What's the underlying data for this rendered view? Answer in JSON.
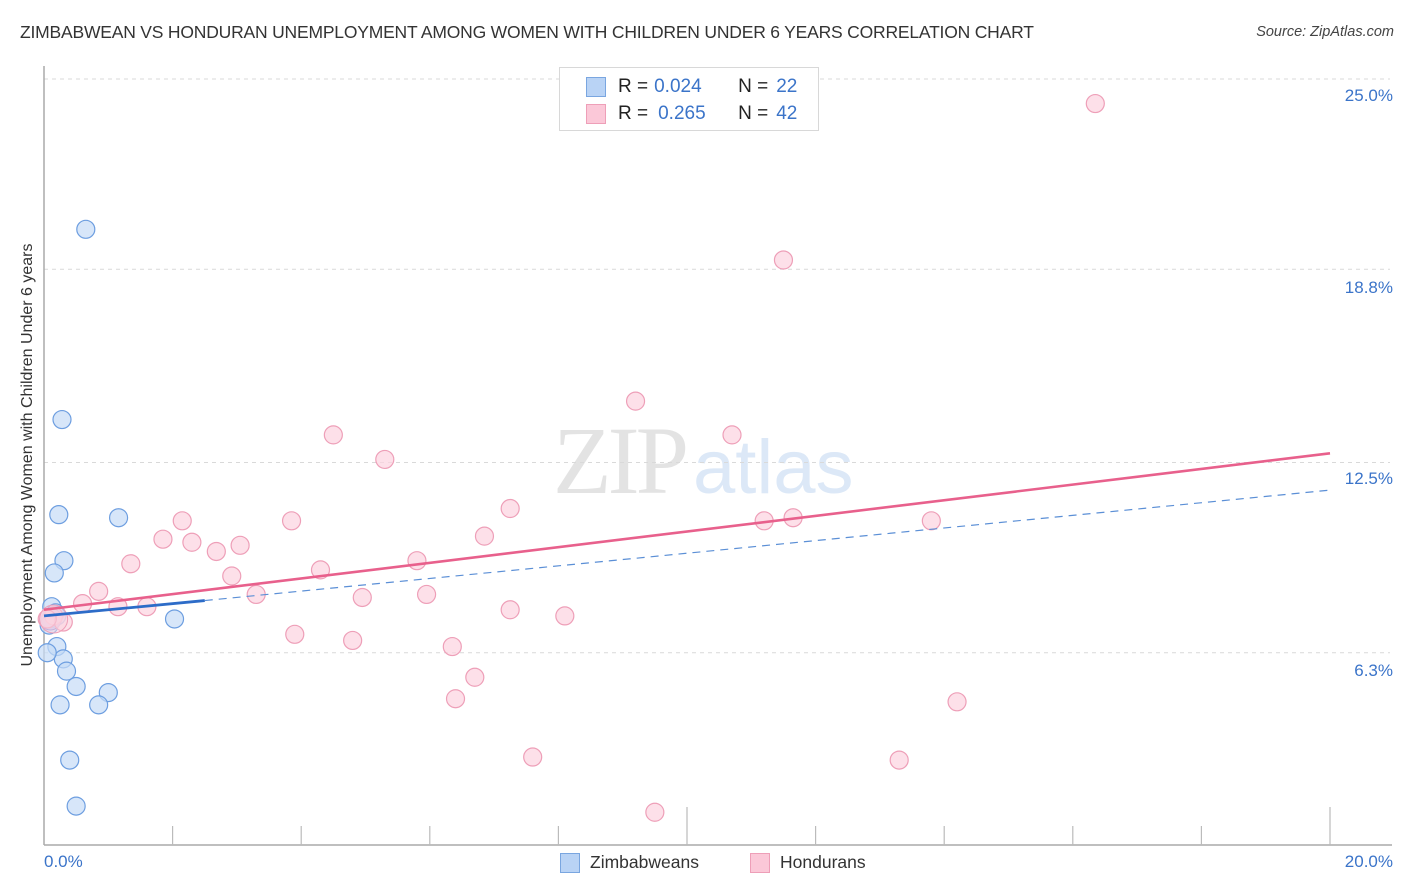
{
  "header": {
    "title": "ZIMBABWEAN VS HONDURAN UNEMPLOYMENT AMONG WOMEN WITH CHILDREN UNDER 6 YEARS CORRELATION CHART",
    "source": "Source: ZipAtlas.com"
  },
  "watermark": {
    "zip": "ZIP",
    "atlas": "atlas"
  },
  "legend": {
    "rows": [
      {
        "r_label": "R = ",
        "r_value": "0.024",
        "n_label": "N = ",
        "n_value": "22",
        "color": "#b9d3f5",
        "border": "#7aa6e0"
      },
      {
        "r_label": "R = ",
        "r_value": "0.265",
        "n_label": "N = ",
        "n_value": "42",
        "color": "#fbc8d8",
        "border": "#ee9fb8"
      }
    ]
  },
  "bottom_legend": {
    "items": [
      {
        "label": "Zimbabweans",
        "color": "#b9d3f5",
        "border": "#7aa6e0"
      },
      {
        "label": "Hondurans",
        "color": "#fbc8d8",
        "border": "#ee9fb8"
      }
    ]
  },
  "axes": {
    "y_ticks": [
      "25.0%",
      "18.8%",
      "12.5%",
      "6.3%"
    ],
    "x_ticks": [
      "0.0%",
      "20.0%"
    ],
    "ylabel": "Unemployment Among Women with Children Under 6 years"
  },
  "colors": {
    "zimbabweans_fill": "#c6dbf7",
    "zimbabweans_stroke": "#6d9ee0",
    "zimbabweans_line": "#2d6cc8",
    "hondurans_fill": "#fcd3df",
    "hondurans_stroke": "#ee9fb8",
    "hondurans_line": "#e8608c",
    "axis_text": "#3b74c9",
    "grid": "#d9d9d9"
  },
  "chart_data": {
    "type": "scatter",
    "title": "ZIMBABWEAN VS HONDURAN UNEMPLOYMENT AMONG WOMEN WITH CHILDREN UNDER 6 YEARS CORRELATION CHART",
    "xlabel": "",
    "ylabel": "Unemployment Among Women with Children Under 6 years",
    "xlim": [
      0,
      20
    ],
    "ylim": [
      0,
      25.5
    ],
    "x_tick_labels": [
      "0.0%",
      "20.0%"
    ],
    "y_tick_labels": [
      "6.3%",
      "12.5%",
      "18.8%",
      "25.0%"
    ],
    "y_gridlines": [
      6.3,
      12.5,
      18.8,
      25.0
    ],
    "grid": true,
    "legend_position": "top-center",
    "series": [
      {
        "name": "Zimbabweans",
        "R": 0.024,
        "N": 22,
        "points": [
          [
            0.65,
            20.1
          ],
          [
            0.28,
            13.9
          ],
          [
            0.23,
            10.8
          ],
          [
            1.16,
            10.7
          ],
          [
            0.31,
            9.3
          ],
          [
            0.16,
            8.9
          ],
          [
            0.12,
            7.8
          ],
          [
            0.18,
            7.6
          ],
          [
            0.1,
            7.4
          ],
          [
            0.2,
            7.5
          ],
          [
            0.08,
            7.2
          ],
          [
            2.03,
            7.4
          ],
          [
            0.2,
            6.5
          ],
          [
            0.3,
            6.1
          ],
          [
            0.35,
            5.7
          ],
          [
            0.5,
            5.2
          ],
          [
            1.0,
            5.0
          ],
          [
            0.25,
            4.6
          ],
          [
            0.85,
            4.6
          ],
          [
            0.4,
            2.8
          ],
          [
            0.5,
            1.3
          ],
          [
            0.05,
            6.3
          ]
        ],
        "trend": {
          "x0": 0.0,
          "y0": 7.5,
          "x1": 2.5,
          "y1": 8.0,
          "style": "solid",
          "extended_to": [
            20,
            11.6
          ],
          "extended_style": "dashed"
        }
      },
      {
        "name": "Hondurans",
        "R": 0.265,
        "N": 42,
        "points": [
          [
            16.35,
            24.2
          ],
          [
            11.5,
            19.1
          ],
          [
            9.2,
            14.5
          ],
          [
            4.5,
            13.4
          ],
          [
            10.7,
            13.4
          ],
          [
            5.3,
            12.6
          ],
          [
            7.25,
            11.0
          ],
          [
            2.15,
            10.6
          ],
          [
            3.85,
            10.6
          ],
          [
            11.2,
            10.6
          ],
          [
            11.65,
            10.7
          ],
          [
            13.8,
            10.6
          ],
          [
            6.85,
            10.1
          ],
          [
            1.85,
            10.0
          ],
          [
            2.3,
            9.9
          ],
          [
            3.05,
            9.8
          ],
          [
            2.68,
            9.6
          ],
          [
            1.35,
            9.2
          ],
          [
            5.8,
            9.3
          ],
          [
            4.3,
            9.0
          ],
          [
            2.92,
            8.8
          ],
          [
            0.85,
            8.3
          ],
          [
            3.3,
            8.2
          ],
          [
            5.95,
            8.2
          ],
          [
            4.95,
            8.1
          ],
          [
            0.6,
            7.9
          ],
          [
            1.15,
            7.8
          ],
          [
            1.6,
            7.8
          ],
          [
            7.25,
            7.7
          ],
          [
            8.1,
            7.5
          ],
          [
            0.15,
            7.5
          ],
          [
            0.3,
            7.3
          ],
          [
            3.9,
            6.9
          ],
          [
            4.8,
            6.7
          ],
          [
            6.35,
            6.5
          ],
          [
            6.7,
            5.5
          ],
          [
            6.4,
            4.8
          ],
          [
            14.2,
            4.7
          ],
          [
            7.6,
            2.9
          ],
          [
            13.3,
            2.8
          ],
          [
            9.5,
            1.1
          ],
          [
            0.05,
            7.4
          ]
        ],
        "trend": {
          "x0": 0.0,
          "y0": 7.7,
          "x1": 20.0,
          "y1": 12.8,
          "style": "solid"
        }
      }
    ]
  }
}
